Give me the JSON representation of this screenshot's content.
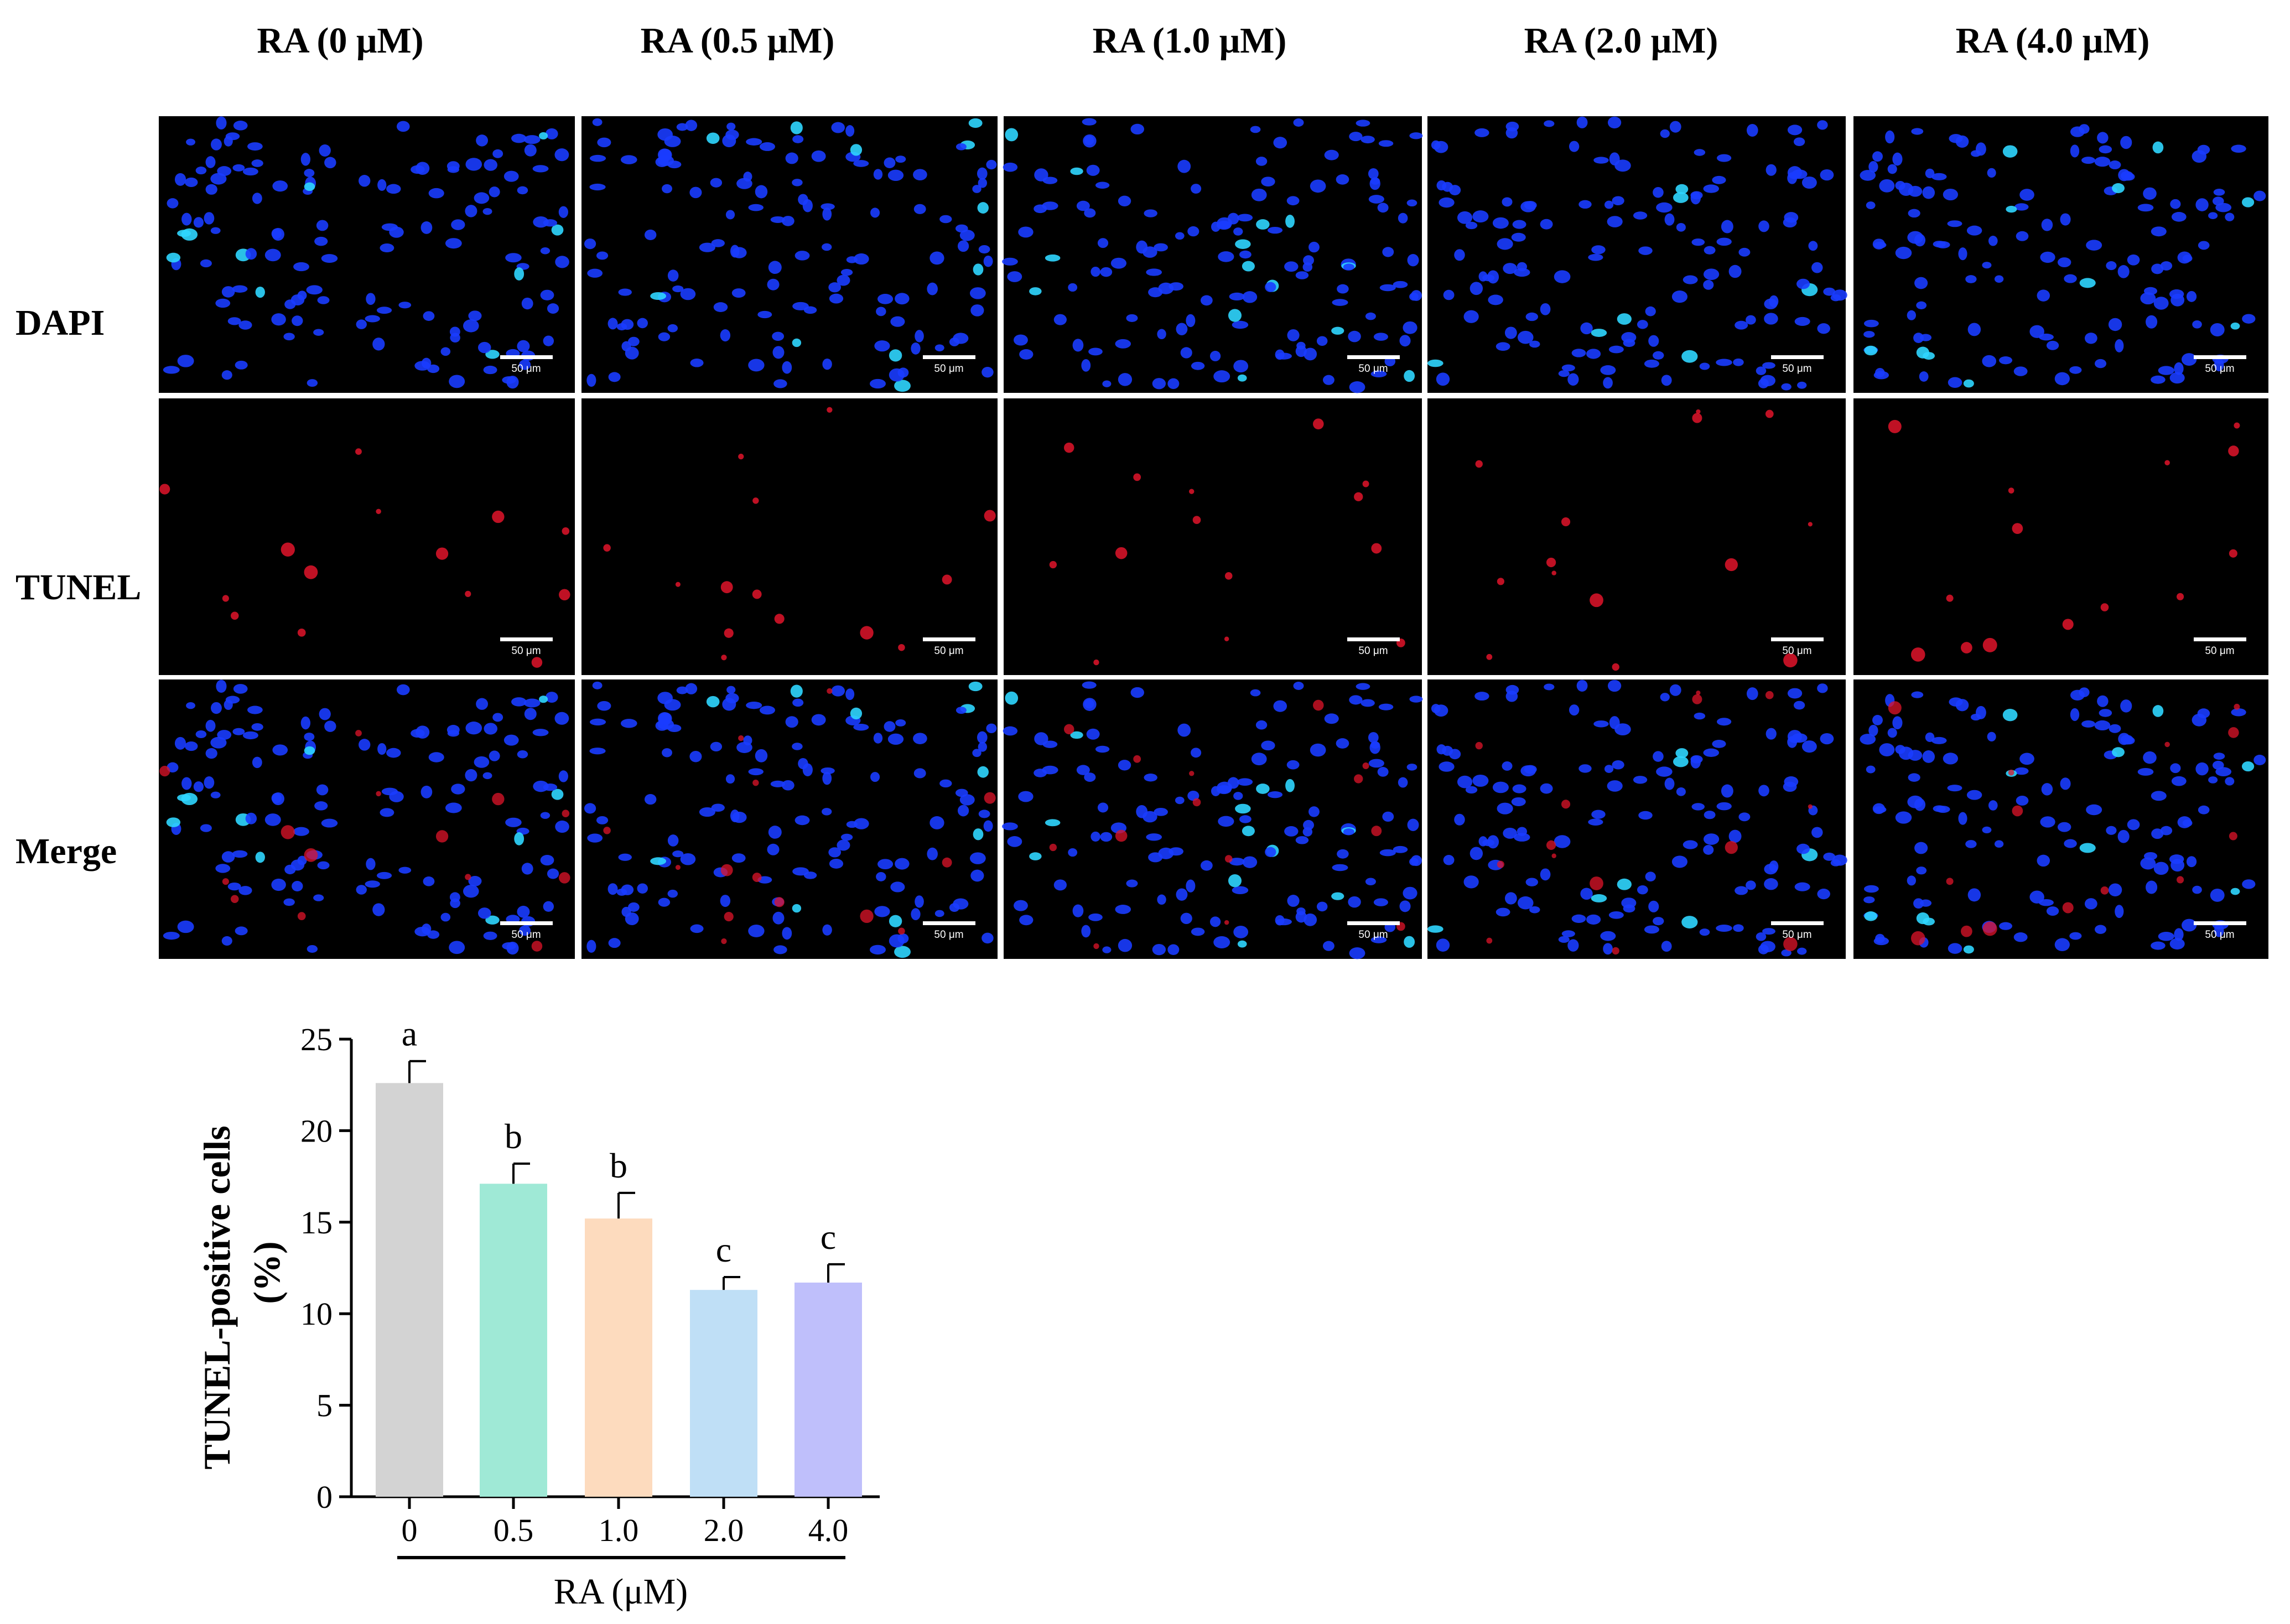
{
  "figure": {
    "column_headers": [
      "RA (0 μM)",
      "RA (0.5 μM)",
      "RA (1.0 μM)",
      "RA (2.0 μM)",
      "RA (4.0 μM)"
    ],
    "row_headers": [
      "DAPI",
      "TUNEL",
      "Merge"
    ],
    "scale_bar_label": "50 μm",
    "colors": {
      "dapi_nuclei": "#1a3cff",
      "bright_nuclei": "#2fd6ff",
      "tunel_signal": "#e0142a",
      "background": "#000000",
      "axis": "#000000"
    }
  },
  "chart_data": {
    "type": "bar",
    "categories": [
      "0",
      "0.5",
      "1.0",
      "2.0",
      "4.0"
    ],
    "values": [
      22.6,
      17.1,
      15.2,
      11.3,
      11.7
    ],
    "errors": [
      1.2,
      1.1,
      1.4,
      0.7,
      1.0
    ],
    "significance": [
      "a",
      "b",
      "b",
      "c",
      "c"
    ],
    "bar_colors": [
      "#d3d3d3",
      "#9fe9d6",
      "#fddbbe",
      "#bfdff6",
      "#bfbffb"
    ],
    "xlabel": "RA (μM)",
    "ylabel_lines": [
      "TUNEL-positive cells",
      "(%)"
    ],
    "ylim": [
      0,
      25
    ],
    "yticks": [
      0,
      5,
      10,
      15,
      20,
      25
    ],
    "grid": false,
    "legend": "none"
  }
}
